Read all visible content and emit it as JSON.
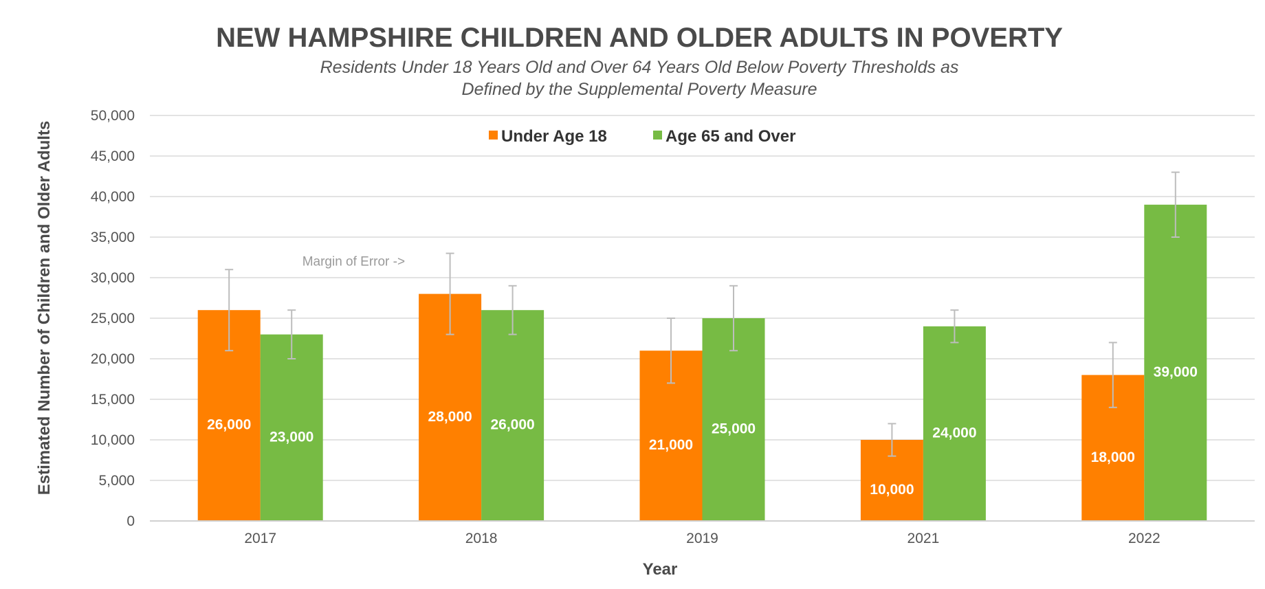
{
  "title": "NEW HAMPSHIRE CHILDREN AND OLDER ADULTS IN POVERTY",
  "subtitle_lines": [
    "Residents Under 18 Years Old and Over 64 Years Old Below Poverty Thresholds as",
    "Defined by the Supplemental Poverty Measure"
  ],
  "colors": {
    "under18": "#ff8000",
    "over65": "#77bb44",
    "grid": "#e3e3e3",
    "error": "#bdbdbd"
  },
  "chart_data": {
    "type": "bar",
    "title": "NEW HAMPSHIRE CHILDREN AND OLDER ADULTS IN POVERTY",
    "xlabel": "Year",
    "ylabel": "Estimated Number of Children and Older Adults",
    "categories": [
      "2017",
      "2018",
      "2019",
      "2021",
      "2022"
    ],
    "ylim": [
      0,
      50000
    ],
    "yticks": [
      0,
      5000,
      10000,
      15000,
      20000,
      25000,
      30000,
      35000,
      40000,
      45000,
      50000
    ],
    "ytick_labels": [
      "0",
      "5,000",
      "10,000",
      "15,000",
      "20,000",
      "25,000",
      "30,000",
      "35,000",
      "40,000",
      "45,000",
      "50,000"
    ],
    "grid": true,
    "legend_position": "top-center",
    "series": [
      {
        "name": "Under Age 18",
        "color": "#ff8000",
        "values": [
          26000,
          28000,
          21000,
          10000,
          18000
        ],
        "labels": [
          "26,000",
          "28,000",
          "21,000",
          "10,000",
          "18,000"
        ],
        "error_low": [
          21000,
          23000,
          17000,
          8000,
          14000
        ],
        "error_high": [
          31000,
          33000,
          25000,
          12000,
          22000
        ]
      },
      {
        "name": "Age 65 and Over",
        "color": "#77bb44",
        "values": [
          23000,
          26000,
          25000,
          24000,
          39000
        ],
        "labels": [
          "23,000",
          "26,000",
          "25,000",
          "24,000",
          "39,000"
        ],
        "error_low": [
          20000,
          23000,
          21000,
          22000,
          35000
        ],
        "error_high": [
          26000,
          29000,
          29000,
          26000,
          43000
        ]
      }
    ],
    "annotations": [
      {
        "text": "Margin of Error ->",
        "category": "2018",
        "y": 32000
      }
    ]
  }
}
